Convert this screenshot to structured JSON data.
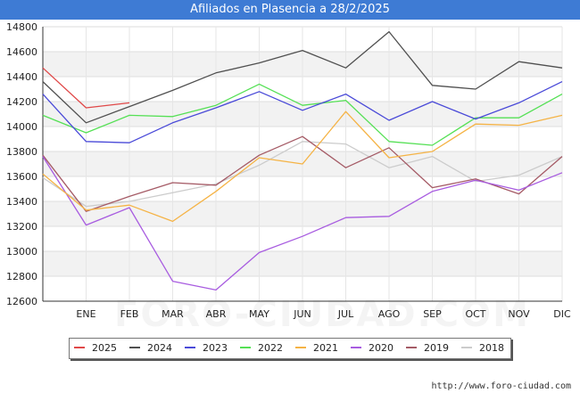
{
  "title": "Afiliados en Plasencia a 28/2/2025",
  "watermark": "FORO-CIUDAD.COM",
  "footer": "http://www.foro-ciudad.com",
  "chart_data": {
    "type": "line",
    "title": "Afiliados en Plasencia a 28/2/2025",
    "categories": [
      "",
      "ENE",
      "FEB",
      "MAR",
      "ABR",
      "MAY",
      "JUN",
      "JUL",
      "AGO",
      "SEP",
      "OCT",
      "NOV",
      "DIC"
    ],
    "y_ticks": [
      12600,
      12800,
      13000,
      13200,
      13400,
      13600,
      13800,
      14000,
      14200,
      14400,
      14600,
      14800
    ],
    "ylim": [
      12600,
      14800
    ],
    "grid": true,
    "legend_position": "bottom",
    "series": [
      {
        "name": "2018",
        "color": "#cccccc",
        "values": [
          13590,
          13360,
          13400,
          13470,
          13540,
          13690,
          13880,
          13860,
          13670,
          13760,
          13560,
          13610,
          13760
        ]
      },
      {
        "name": "2019",
        "color": "#a55b66",
        "values": [
          13770,
          13320,
          13440,
          13550,
          13530,
          13770,
          13920,
          13670,
          13830,
          13510,
          13580,
          13460,
          13760
        ]
      },
      {
        "name": "2020",
        "color": "#a85ce0",
        "values": [
          13760,
          13210,
          13350,
          12760,
          12690,
          12990,
          13120,
          13270,
          13280,
          13480,
          13570,
          13490,
          13630
        ]
      },
      {
        "name": "2021",
        "color": "#f5b345",
        "values": [
          13620,
          13330,
          13370,
          13240,
          13480,
          13750,
          13700,
          14120,
          13750,
          13800,
          14020,
          14010,
          14090
        ]
      },
      {
        "name": "2022",
        "color": "#55e055",
        "values": [
          14090,
          13950,
          14090,
          14080,
          14170,
          14340,
          14170,
          14210,
          13880,
          13850,
          14070,
          14070,
          14260
        ]
      },
      {
        "name": "2023",
        "color": "#4a4ad8",
        "values": [
          14260,
          13880,
          13870,
          14030,
          14150,
          14280,
          14130,
          14260,
          14050,
          14200,
          14060,
          14190,
          14360
        ]
      },
      {
        "name": "2024",
        "color": "#505050",
        "values": [
          14360,
          14030,
          14160,
          14290,
          14430,
          14510,
          14610,
          14470,
          14760,
          14330,
          14300,
          14520,
          14470
        ]
      },
      {
        "name": "2025",
        "color": "#e04848",
        "values": [
          14470,
          14150,
          14190,
          null,
          null,
          null,
          null,
          null,
          null,
          null,
          null,
          null,
          null
        ]
      }
    ],
    "legend_order": [
      "2025",
      "2024",
      "2023",
      "2022",
      "2021",
      "2020",
      "2019",
      "2018"
    ]
  }
}
